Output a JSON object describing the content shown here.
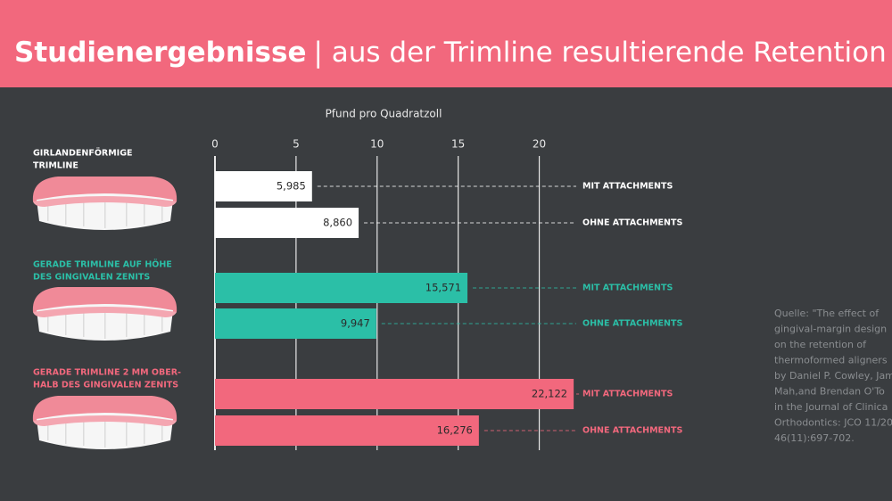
{
  "chart_data": {
    "type": "bar",
    "orientation": "horizontal",
    "title": "Studienergebnisse",
    "subtitle": "| aus der Trimline resultierende Retention",
    "xlabel": "Pfund pro Quadratzoll",
    "xlim": [
      0,
      22.5
    ],
    "xticks": [
      0,
      5,
      10,
      15,
      20
    ],
    "grid": true,
    "groups": [
      {
        "label": [
          "GIRLANDENFÖRMIGE",
          "TRIMLINE"
        ],
        "color": "#ffffff",
        "categories": [
          "MIT ATTACHMENTS",
          "OHNE ATTACHMENTS"
        ],
        "values": [
          5.985,
          8.86
        ],
        "value_labels": [
          "5,985",
          "8,860"
        ]
      },
      {
        "label": [
          "GERADE TRIMLINE AUF HÖHE",
          "DES GINGIVALEN ZENITS"
        ],
        "color": "#2bbfa7",
        "categories": [
          "MIT ATTACHMENTS",
          "OHNE ATTACHMENTS"
        ],
        "values": [
          15.571,
          9.947
        ],
        "value_labels": [
          "15,571",
          "9,947"
        ]
      },
      {
        "label": [
          "GERADE TRIMLINE 2 MM OBER-",
          "HALB DES GINGIVALEN ZENITS"
        ],
        "color": "#f2687d",
        "categories": [
          "MIT ATTACHMENTS",
          "OHNE ATTACHMENTS"
        ],
        "values": [
          22.122,
          16.276
        ],
        "value_labels": [
          "22,122",
          "16,276"
        ]
      }
    ],
    "source": [
      "Quelle: \"The effect of",
      "gingival-margin design",
      "on the retention of",
      "thermoformed aligners",
      "by Daniel P. Cowley, Jam",
      "Mah,and Brendan O'To",
      "in the Journal of Clinica",
      "Orthodontics: JCO 11/20",
      "46(11):697-702."
    ]
  }
}
